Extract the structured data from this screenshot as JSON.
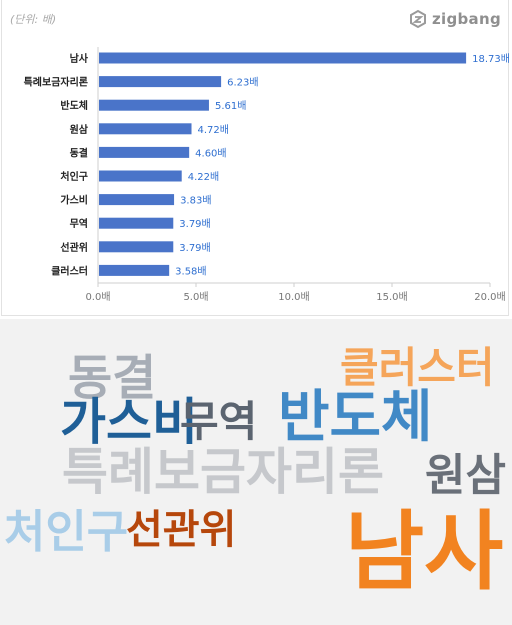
{
  "chart_data": {
    "type": "bar",
    "orientation": "horizontal",
    "unit_label": "(단위: 배)",
    "categories": [
      "남사",
      "특례보금자리론",
      "반도체",
      "원삼",
      "동결",
      "처인구",
      "가스비",
      "무역",
      "선관위",
      "클러스터"
    ],
    "values": [
      18.73,
      6.23,
      5.61,
      4.72,
      4.6,
      4.22,
      3.83,
      3.79,
      3.79,
      3.58
    ],
    "data_labels": [
      "18.73배",
      "6.23배",
      "5.61배",
      "4.72배",
      "4.60배",
      "4.22배",
      "3.83배",
      "3.79배",
      "3.79배",
      "3.58배"
    ],
    "xlim": [
      0,
      20
    ],
    "xticks": [
      0,
      5,
      10,
      15,
      20
    ],
    "xtick_labels": [
      "0.0배",
      "5.0배",
      "10.0배",
      "15.0배",
      "20.0배"
    ],
    "grid": false,
    "bar_color": "#4a74c9",
    "label_color": "#2f6fd0"
  },
  "logo": {
    "text": "zigbang",
    "icon": "zigbang-logo-icon"
  },
  "word_cloud": [
    {
      "text": "동결",
      "color": "#a7adb6"
    },
    {
      "text": "클러스터",
      "color": "#f5a55a"
    },
    {
      "text": "가스비",
      "color": "#1f5f97"
    },
    {
      "text": "무역",
      "color": "#5b6470"
    },
    {
      "text": "반도체",
      "color": "#4189c6"
    },
    {
      "text": "특례보금자리론",
      "color": "#c6c8cc"
    },
    {
      "text": "원삼",
      "color": "#6a7079"
    },
    {
      "text": "처인구",
      "color": "#a9cde8"
    },
    {
      "text": "선관위",
      "color": "#b6470c"
    },
    {
      "text": "남사",
      "color": "#f28320"
    }
  ]
}
